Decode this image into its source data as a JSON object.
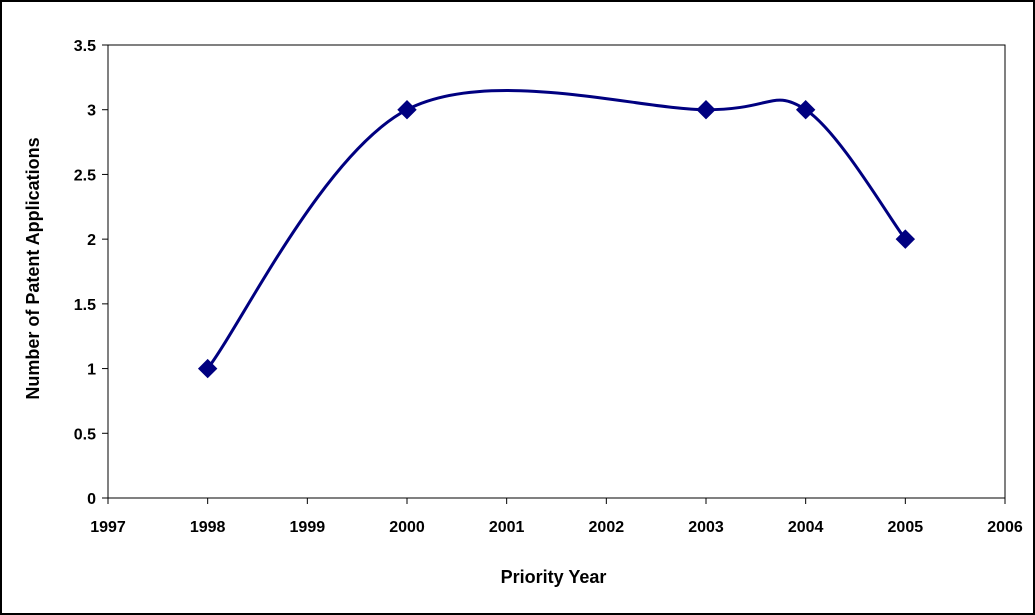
{
  "chart_data": {
    "type": "line",
    "title": "",
    "xlabel": "Priority Year",
    "ylabel": "Number of Patent Applications",
    "xlim": [
      1997,
      2006
    ],
    "ylim": [
      0,
      3.5
    ],
    "x_ticks": [
      1997,
      1998,
      1999,
      2000,
      2001,
      2002,
      2003,
      2004,
      2005,
      2006
    ],
    "y_ticks": [
      "0",
      "0.5",
      "1",
      "1.5",
      "2",
      "2.5",
      "3",
      "3.5"
    ],
    "smooth": true,
    "grid": false,
    "legend": "none",
    "series": [
      {
        "color": "#000080",
        "marker": "diamond",
        "x": [
          1998,
          2000,
          2003,
          2004,
          2005
        ],
        "y": [
          1,
          3,
          3,
          3,
          2
        ]
      }
    ]
  }
}
